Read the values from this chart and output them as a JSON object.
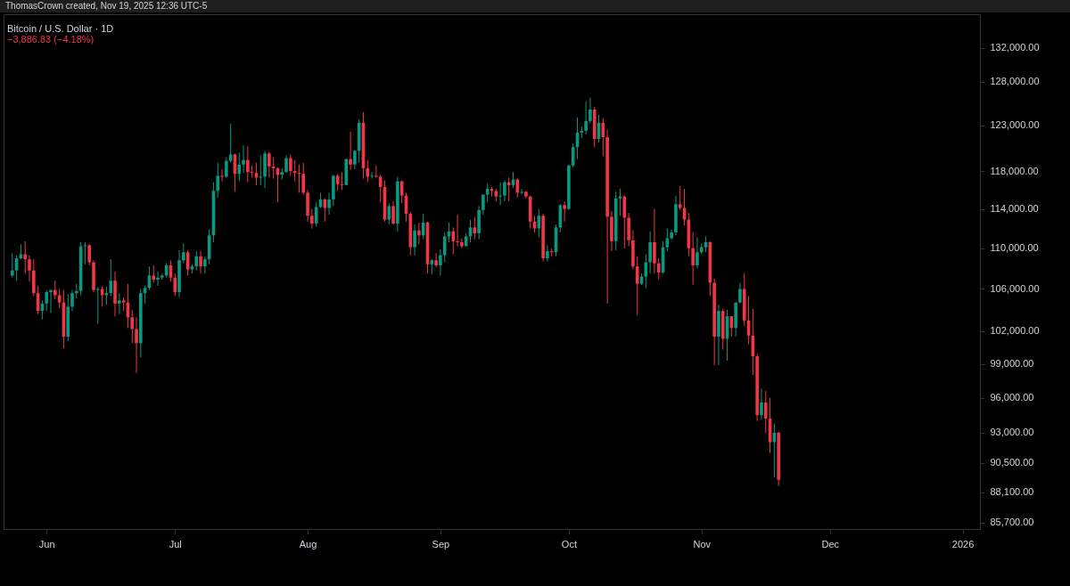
{
  "chart_data": {
    "type": "candlestick",
    "title": "Bitcoin / U.S. Dollar · 1D",
    "subtitle": "−3,886.83 (−4.18%)",
    "annotations": [
      "ThomasCrown created, Nov 19, 2025 12:36 UTC-5"
    ],
    "x": [
      "2025-05-24",
      "2025-05-25",
      "2025-05-26",
      "2025-05-27",
      "2025-05-28",
      "2025-05-29",
      "2025-05-30",
      "2025-05-31",
      "2025-06-01",
      "2025-06-02",
      "2025-06-03",
      "2025-06-04",
      "2025-06-05",
      "2025-06-06",
      "2025-06-07",
      "2025-06-08",
      "2025-06-09",
      "2025-06-10",
      "2025-06-11",
      "2025-06-12",
      "2025-06-13",
      "2025-06-14",
      "2025-06-15",
      "2025-06-16",
      "2025-06-17",
      "2025-06-18",
      "2025-06-19",
      "2025-06-20",
      "2025-06-21",
      "2025-06-22",
      "2025-06-23",
      "2025-06-24",
      "2025-06-25",
      "2025-06-26",
      "2025-06-27",
      "2025-06-28",
      "2025-06-29",
      "2025-06-30",
      "2025-07-01",
      "2025-07-02",
      "2025-07-03",
      "2025-07-04",
      "2025-07-05",
      "2025-07-06",
      "2025-07-07",
      "2025-07-08",
      "2025-07-09",
      "2025-07-10",
      "2025-07-11",
      "2025-07-12",
      "2025-07-13",
      "2025-07-14",
      "2025-07-15",
      "2025-07-16",
      "2025-07-17",
      "2025-07-18",
      "2025-07-19",
      "2025-07-20",
      "2025-07-21",
      "2025-07-22",
      "2025-07-23",
      "2025-07-24",
      "2025-07-25",
      "2025-07-26",
      "2025-07-27",
      "2025-07-28",
      "2025-07-29",
      "2025-07-30",
      "2025-07-31",
      "2025-08-01",
      "2025-08-02",
      "2025-08-03",
      "2025-08-04",
      "2025-08-05",
      "2025-08-06",
      "2025-08-07",
      "2025-08-08",
      "2025-08-09",
      "2025-08-10",
      "2025-08-11",
      "2025-08-12",
      "2025-08-13",
      "2025-08-14",
      "2025-08-15",
      "2025-08-16",
      "2025-08-17",
      "2025-08-18",
      "2025-08-19",
      "2025-08-20",
      "2025-08-21",
      "2025-08-22",
      "2025-08-23",
      "2025-08-24",
      "2025-08-25",
      "2025-08-26",
      "2025-08-27",
      "2025-08-28",
      "2025-08-29",
      "2025-08-30",
      "2025-08-31",
      "2025-09-01",
      "2025-09-02",
      "2025-09-03",
      "2025-09-04",
      "2025-09-05",
      "2025-09-06",
      "2025-09-07",
      "2025-09-08",
      "2025-09-09",
      "2025-09-10",
      "2025-09-11",
      "2025-09-12",
      "2025-09-13",
      "2025-09-14",
      "2025-09-15",
      "2025-09-16",
      "2025-09-17",
      "2025-09-18",
      "2025-09-19",
      "2025-09-20",
      "2025-09-21",
      "2025-09-22",
      "2025-09-23",
      "2025-09-24",
      "2025-09-25",
      "2025-09-26",
      "2025-09-27",
      "2025-09-28",
      "2025-09-29",
      "2025-09-30",
      "2025-10-01",
      "2025-10-02",
      "2025-10-03",
      "2025-10-04",
      "2025-10-05",
      "2025-10-06",
      "2025-10-07",
      "2025-10-08",
      "2025-10-09",
      "2025-10-10",
      "2025-10-11",
      "2025-10-12",
      "2025-10-13",
      "2025-10-14",
      "2025-10-15",
      "2025-10-16",
      "2025-10-17",
      "2025-10-18",
      "2025-10-19",
      "2025-10-20",
      "2025-10-21",
      "2025-10-22",
      "2025-10-23",
      "2025-10-24",
      "2025-10-25",
      "2025-10-26",
      "2025-10-27",
      "2025-10-28",
      "2025-10-29",
      "2025-10-30",
      "2025-10-31",
      "2025-11-01",
      "2025-11-02",
      "2025-11-03",
      "2025-11-04",
      "2025-11-05",
      "2025-11-06",
      "2025-11-07",
      "2025-11-08",
      "2025-11-09",
      "2025-11-10",
      "2025-11-11",
      "2025-11-12",
      "2025-11-13",
      "2025-11-14",
      "2025-11-15",
      "2025-11-16",
      "2025-11-17",
      "2025-11-18",
      "2025-11-19"
    ],
    "ohlc": [
      [
        107300,
        109500,
        107100,
        107800
      ],
      [
        107800,
        109300,
        106800,
        109000
      ],
      [
        109000,
        110400,
        108900,
        109400
      ],
      [
        109400,
        110700,
        107500,
        108900
      ],
      [
        108900,
        109300,
        106700,
        107800
      ],
      [
        107800,
        108900,
        105300,
        105600
      ],
      [
        105600,
        106300,
        103600,
        103900
      ],
      [
        103900,
        104900,
        103100,
        104600
      ],
      [
        104600,
        105900,
        103900,
        105700
      ],
      [
        105700,
        105900,
        103700,
        105900
      ],
      [
        105900,
        106800,
        105000,
        105400
      ],
      [
        105400,
        106000,
        104200,
        104700
      ],
      [
        104700,
        105900,
        100400,
        101500
      ],
      [
        101500,
        105500,
        101100,
        104300
      ],
      [
        104300,
        105900,
        103900,
        105600
      ],
      [
        105600,
        106500,
        105100,
        105800
      ],
      [
        105800,
        110600,
        105400,
        110200
      ],
      [
        110200,
        110600,
        108400,
        110300
      ],
      [
        110300,
        110400,
        108300,
        108600
      ],
      [
        108600,
        108800,
        105700,
        105900
      ],
      [
        105900,
        106200,
        102700,
        106000
      ],
      [
        106000,
        106200,
        104300,
        105400
      ],
      [
        105400,
        106200,
        104500,
        105600
      ],
      [
        105600,
        108900,
        105300,
        106800
      ],
      [
        106800,
        107700,
        103400,
        104600
      ],
      [
        104600,
        105600,
        103600,
        104900
      ],
      [
        104900,
        105200,
        103900,
        104700
      ],
      [
        104700,
        106500,
        102300,
        103300
      ],
      [
        103300,
        104000,
        100900,
        102200
      ],
      [
        102200,
        103300,
        98200,
        100900
      ],
      [
        100900,
        106000,
        99600,
        105600
      ],
      [
        105600,
        106300,
        104600,
        106100
      ],
      [
        106100,
        108200,
        105900,
        107300
      ],
      [
        107300,
        108300,
        106600,
        106900
      ],
      [
        106900,
        107700,
        106300,
        107100
      ],
      [
        107100,
        107500,
        106900,
        107300
      ],
      [
        107300,
        108500,
        107100,
        108300
      ],
      [
        108300,
        108800,
        106700,
        107100
      ],
      [
        107100,
        107500,
        105300,
        105700
      ],
      [
        105700,
        109800,
        105200,
        108800
      ],
      [
        108800,
        110500,
        108500,
        109600
      ],
      [
        109600,
        109800,
        107300,
        107900
      ],
      [
        107900,
        108400,
        107500,
        108200
      ],
      [
        108200,
        109700,
        107800,
        109200
      ],
      [
        109200,
        109700,
        107500,
        108200
      ],
      [
        108200,
        109200,
        107500,
        108900
      ],
      [
        108900,
        111900,
        108400,
        111300
      ],
      [
        111300,
        116800,
        110600,
        115900
      ],
      [
        115900,
        118900,
        115200,
        117500
      ],
      [
        117500,
        118200,
        116900,
        117400
      ],
      [
        117400,
        119500,
        117300,
        119100
      ],
      [
        119100,
        123200,
        118900,
        119800
      ],
      [
        119800,
        119900,
        115800,
        117700
      ],
      [
        117700,
        120000,
        116900,
        118700
      ],
      [
        118700,
        120800,
        117800,
        119200
      ],
      [
        119200,
        120700,
        116800,
        117900
      ],
      [
        117900,
        118600,
        117300,
        117800
      ],
      [
        117800,
        118900,
        116500,
        117300
      ],
      [
        117300,
        119700,
        116500,
        117400
      ],
      [
        117400,
        120200,
        116200,
        119900
      ],
      [
        119900,
        120100,
        117300,
        118500
      ],
      [
        118500,
        119500,
        117200,
        118300
      ],
      [
        118300,
        118400,
        114700,
        117600
      ],
      [
        117600,
        118300,
        117100,
        117900
      ],
      [
        117900,
        119700,
        117800,
        119400
      ],
      [
        119400,
        119800,
        117500,
        118000
      ],
      [
        118000,
        119200,
        116900,
        117800
      ],
      [
        117800,
        118700,
        115700,
        117700
      ],
      [
        117700,
        118900,
        115500,
        115700
      ],
      [
        115700,
        116000,
        112700,
        113300
      ],
      [
        113300,
        114000,
        112000,
        112500
      ],
      [
        112500,
        114700,
        112200,
        114200
      ],
      [
        114200,
        115700,
        114100,
        115000
      ],
      [
        115000,
        115100,
        112700,
        114100
      ],
      [
        114100,
        115700,
        113400,
        115000
      ],
      [
        115000,
        117600,
        114300,
        117500
      ],
      [
        117500,
        117700,
        115900,
        116600
      ],
      [
        116600,
        117900,
        116000,
        116500
      ],
      [
        116500,
        119300,
        116500,
        119300
      ],
      [
        119300,
        122300,
        118100,
        118700
      ],
      [
        118700,
        120300,
        118200,
        120200
      ],
      [
        120200,
        123700,
        118900,
        123300
      ],
      [
        123300,
        124500,
        117200,
        118300
      ],
      [
        118300,
        119200,
        116800,
        117400
      ],
      [
        117400,
        117900,
        117200,
        117500
      ],
      [
        117500,
        118600,
        117300,
        117400
      ],
      [
        117400,
        117600,
        114700,
        116300
      ],
      [
        116300,
        117000,
        112700,
        112900
      ],
      [
        112900,
        114600,
        112400,
        114300
      ],
      [
        114300,
        114800,
        112400,
        112500
      ],
      [
        112500,
        117400,
        111700,
        116900
      ],
      [
        116900,
        117000,
        114600,
        115400
      ],
      [
        115400,
        115700,
        112700,
        113500
      ],
      [
        113500,
        113700,
        109300,
        110100
      ],
      [
        110100,
        112400,
        109300,
        111800
      ],
      [
        111800,
        112600,
        110400,
        111300
      ],
      [
        111300,
        113500,
        110900,
        112600
      ],
      [
        112600,
        112700,
        107500,
        108400
      ],
      [
        108400,
        108900,
        107400,
        108800
      ],
      [
        108800,
        109500,
        108100,
        108300
      ],
      [
        108300,
        109900,
        107300,
        109300
      ],
      [
        109300,
        111600,
        108600,
        111200
      ],
      [
        111200,
        112600,
        110600,
        111700
      ],
      [
        111700,
        112100,
        109400,
        110700
      ],
      [
        110700,
        113400,
        110200,
        110600
      ],
      [
        110600,
        111000,
        110000,
        110200
      ],
      [
        110200,
        111500,
        110200,
        111200
      ],
      [
        111200,
        112900,
        110600,
        112100
      ],
      [
        112100,
        113200,
        110900,
        111500
      ],
      [
        111500,
        114300,
        110900,
        113900
      ],
      [
        113900,
        115500,
        113400,
        115500
      ],
      [
        115500,
        116700,
        114700,
        116100
      ],
      [
        116100,
        116300,
        115300,
        115900
      ],
      [
        115900,
        116100,
        114800,
        115300
      ],
      [
        115300,
        116800,
        114400,
        115400
      ],
      [
        115400,
        117000,
        114800,
        116800
      ],
      [
        116800,
        117300,
        114800,
        116500
      ],
      [
        116500,
        117900,
        116200,
        117100
      ],
      [
        117100,
        117200,
        115200,
        115700
      ],
      [
        115700,
        116100,
        115500,
        115800
      ],
      [
        115800,
        115900,
        115100,
        115300
      ],
      [
        115300,
        115400,
        112000,
        112700
      ],
      [
        112700,
        113300,
        111600,
        112000
      ],
      [
        112000,
        114000,
        111100,
        113300
      ],
      [
        113300,
        113500,
        108700,
        109000
      ],
      [
        109000,
        110300,
        108700,
        109700
      ],
      [
        109700,
        110000,
        109200,
        109600
      ],
      [
        109600,
        112400,
        109200,
        112100
      ],
      [
        112100,
        114500,
        111600,
        114400
      ],
      [
        114400,
        114800,
        112700,
        114000
      ],
      [
        114000,
        118700,
        113900,
        118600
      ],
      [
        118600,
        121000,
        118400,
        120600
      ],
      [
        120600,
        123900,
        119300,
        122200
      ],
      [
        122200,
        122900,
        121600,
        122400
      ],
      [
        122400,
        125700,
        122000,
        123500
      ],
      [
        123500,
        126200,
        123200,
        124800
      ],
      [
        124800,
        125100,
        120600,
        121500
      ],
      [
        121500,
        124200,
        121100,
        123300
      ],
      [
        123300,
        123800,
        119600,
        121700
      ],
      [
        121700,
        122500,
        104600,
        113200
      ],
      [
        113200,
        113800,
        109700,
        110700
      ],
      [
        110700,
        115800,
        109800,
        115100
      ],
      [
        115100,
        116100,
        113300,
        115300
      ],
      [
        115300,
        115400,
        110000,
        113100
      ],
      [
        113100,
        113600,
        110200,
        110800
      ],
      [
        110800,
        111800,
        107900,
        108200
      ],
      [
        108200,
        109200,
        103500,
        106500
      ],
      [
        106500,
        107500,
        106400,
        107200
      ],
      [
        107200,
        109400,
        106100,
        108600
      ],
      [
        108600,
        111700,
        107500,
        110600
      ],
      [
        110600,
        114000,
        107500,
        108500
      ],
      [
        108500,
        109000,
        106900,
        107600
      ],
      [
        107600,
        110700,
        107500,
        110100
      ],
      [
        110100,
        112000,
        109700,
        111000
      ],
      [
        111000,
        111900,
        110900,
        111600
      ],
      [
        111600,
        115400,
        111300,
        114500
      ],
      [
        114500,
        116400,
        113900,
        114100
      ],
      [
        114100,
        116100,
        112300,
        112900
      ],
      [
        112900,
        113600,
        109200,
        110000
      ],
      [
        110000,
        111600,
        106400,
        108300
      ],
      [
        108300,
        111100,
        108000,
        109600
      ],
      [
        109600,
        110500,
        109400,
        110100
      ],
      [
        110100,
        111200,
        109600,
        110600
      ],
      [
        110600,
        110700,
        105300,
        106600
      ],
      [
        106600,
        107000,
        98900,
        101500
      ],
      [
        101500,
        104500,
        98900,
        103900
      ],
      [
        103900,
        104100,
        100300,
        101300
      ],
      [
        101300,
        104000,
        99300,
        103400
      ],
      [
        103400,
        103400,
        101500,
        102300
      ],
      [
        102300,
        104700,
        101500,
        104700
      ],
      [
        104700,
        106600,
        104600,
        106000
      ],
      [
        106000,
        107500,
        102500,
        103000
      ],
      [
        103000,
        105300,
        100800,
        101600
      ],
      [
        101600,
        104100,
        98000,
        99700
      ],
      [
        99700,
        99900,
        94000,
        94500
      ],
      [
        94500,
        96800,
        94100,
        95600
      ],
      [
        95600,
        96600,
        93000,
        94200
      ],
      [
        94200,
        96000,
        91300,
        92200
      ],
      [
        92200,
        93800,
        89300,
        93000
      ],
      [
        93000,
        93100,
        88600,
        89100
      ]
    ],
    "colors": [
      "#089981",
      "#089981",
      "#089981",
      "#f23645",
      "#f23645",
      "#f23645",
      "#f23645",
      "#089981",
      "#089981",
      "#089981",
      "#f23645",
      "#f23645",
      "#f23645",
      "#089981",
      "#089981",
      "#089981",
      "#089981",
      "#089981",
      "#f23645",
      "#f23645",
      "#089981",
      "#f23645",
      "#089981",
      "#089981",
      "#f23645",
      "#089981",
      "#f23645",
      "#f23645",
      "#f23645",
      "#f23645",
      "#089981",
      "#089981",
      "#089981",
      "#f23645",
      "#089981",
      "#089981",
      "#089981",
      "#f23645",
      "#f23645",
      "#089981",
      "#089981",
      "#f23645",
      "#089981",
      "#089981",
      "#f23645",
      "#089981",
      "#089981",
      "#089981",
      "#089981",
      "#f23645",
      "#089981",
      "#089981",
      "#f23645",
      "#089981",
      "#089981",
      "#f23645",
      "#f23645",
      "#f23645",
      "#089981",
      "#089981",
      "#f23645",
      "#f23645",
      "#f23645",
      "#089981",
      "#089981",
      "#f23645",
      "#f23645",
      "#f23645",
      "#f23645",
      "#f23645",
      "#f23645",
      "#089981",
      "#089981",
      "#f23645",
      "#089981",
      "#089981",
      "#f23645",
      "#f23645",
      "#089981",
      "#f23645",
      "#089981",
      "#089981",
      "#f23645",
      "#f23645",
      "#089981",
      "#f23645",
      "#f23645",
      "#f23645",
      "#089981",
      "#f23645",
      "#089981",
      "#f23645",
      "#f23645",
      "#f23645",
      "#089981",
      "#f23645",
      "#089981",
      "#f23645",
      "#089981",
      "#f23645",
      "#089981",
      "#089981",
      "#089981",
      "#f23645",
      "#f23645",
      "#f23645",
      "#089981",
      "#089981",
      "#f23645",
      "#089981",
      "#089981",
      "#089981",
      "#f23645",
      "#f23645",
      "#089981",
      "#089981",
      "#f23645",
      "#089981",
      "#f23645",
      "#089981",
      "#f23645",
      "#f23645",
      "#f23645",
      "#089981",
      "#f23645",
      "#089981",
      "#f23645",
      "#089981",
      "#089981",
      "#f23645",
      "#089981",
      "#089981",
      "#089981",
      "#089981",
      "#089981",
      "#089981",
      "#f23645",
      "#089981",
      "#f23645",
      "#f23645",
      "#f23645",
      "#089981",
      "#089981",
      "#f23645",
      "#f23645",
      "#f23645",
      "#f23645",
      "#089981",
      "#089981",
      "#089981",
      "#f23645",
      "#f23645",
      "#089981",
      "#089981",
      "#089981",
      "#089981",
      "#f23645",
      "#f23645",
      "#f23645",
      "#f23645",
      "#089981",
      "#089981",
      "#089981",
      "#f23645",
      "#f23645",
      "#089981",
      "#f23645",
      "#089981",
      "#f23645",
      "#089981",
      "#089981",
      "#f23645",
      "#f23645",
      "#f23645",
      "#f23645",
      "#089981",
      "#f23645",
      "#f23645",
      "#089981",
      "#f23645"
    ],
    "log": "y",
    "xlim": [
      "2025-05-23",
      "2026-01-04"
    ],
    "xticks": [
      {
        "value": "2025-06-01",
        "label": "Jun"
      },
      {
        "value": "2025-07-01",
        "label": "Jul"
      },
      {
        "value": "2025-08-01",
        "label": "Aug"
      },
      {
        "value": "2025-09-01",
        "label": "Sep"
      },
      {
        "value": "2025-10-01",
        "label": "Oct"
      },
      {
        "value": "2025-11-01",
        "label": "Nov"
      },
      {
        "value": "2025-12-01",
        "label": "Dec"
      },
      {
        "value": "2026-01-01",
        "label": "2026"
      }
    ],
    "ylim": [
      85200,
      136100
    ],
    "yticks": [
      {
        "value": 85700,
        "label": "85,700.00"
      },
      {
        "value": 88100,
        "label": "88,100.00"
      },
      {
        "value": 90500,
        "label": "90,500.00"
      },
      {
        "value": 93000,
        "label": "93,000.00"
      },
      {
        "value": 96000,
        "label": "96,000.00"
      },
      {
        "value": 99000,
        "label": "99,000.00"
      },
      {
        "value": 102000,
        "label": "102,000.00"
      },
      {
        "value": 106000,
        "label": "106,000.00"
      },
      {
        "value": 110000,
        "label": "110,000.00"
      },
      {
        "value": 114000,
        "label": "114,000.00"
      },
      {
        "value": 118000,
        "label": "118,000.00"
      },
      {
        "value": 123000,
        "label": "123,000.00"
      },
      {
        "value": 128000,
        "label": "128,000.00"
      },
      {
        "value": 132000,
        "label": "132,000.00"
      }
    ]
  }
}
